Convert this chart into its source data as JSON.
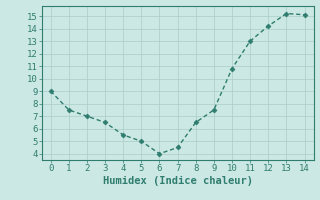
{
  "x": [
    0,
    1,
    2,
    3,
    4,
    5,
    6,
    7,
    8,
    9,
    10,
    11,
    12,
    13,
    14
  ],
  "y": [
    9.0,
    7.5,
    7.0,
    6.5,
    5.5,
    5.0,
    4.0,
    4.5,
    6.5,
    7.5,
    10.8,
    13.0,
    14.2,
    15.2,
    15.1
  ],
  "line_color": "#2e7d6e",
  "marker": "D",
  "marker_size": 2.5,
  "linewidth": 1.0,
  "xlabel": "Humidex (Indice chaleur)",
  "xlabel_fontsize": 7.5,
  "background_color": "#cce8e4",
  "grid_color": "#aaccc8",
  "xlim": [
    -0.5,
    14.5
  ],
  "ylim": [
    3.5,
    15.8
  ],
  "yticks": [
    4,
    5,
    6,
    7,
    8,
    9,
    10,
    11,
    12,
    13,
    14,
    15
  ],
  "xticks": [
    0,
    1,
    2,
    3,
    4,
    5,
    6,
    7,
    8,
    9,
    10,
    11,
    12,
    13,
    14
  ],
  "tick_fontsize": 6.5,
  "tick_color": "#2e7d6e",
  "spine_color": "#2e7d6e"
}
